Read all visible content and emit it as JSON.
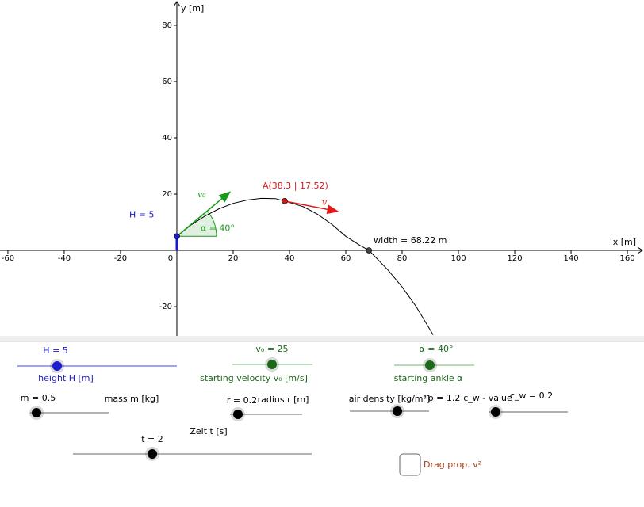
{
  "graphics": {
    "x_axis_label": "x [m]",
    "y_axis_label": "y [m]",
    "xlim": [
      -62.8,
      165.9
    ],
    "ylim": [
      -30.4,
      89.0
    ],
    "xticks": [
      -60,
      -40,
      -20,
      0,
      20,
      40,
      60,
      80,
      100,
      120,
      140,
      160
    ],
    "yticks": [
      -20,
      20,
      40,
      60,
      80
    ],
    "trajectory": {
      "x": [
        0,
        5,
        10,
        15,
        20,
        25,
        30,
        35,
        38.3,
        45,
        50,
        55,
        60,
        65,
        68.22,
        75,
        80,
        85,
        91
      ],
      "y": [
        5,
        9.0,
        12.2,
        14.8,
        16.7,
        17.9,
        18.5,
        18.4,
        17.52,
        15.5,
        12.8,
        9.3,
        5.0,
        1.8,
        0,
        -7,
        -13,
        -20,
        -30
      ]
    },
    "points": [
      {
        "label": "H = 5",
        "x": 0,
        "y": 5,
        "color": "#1a1ad0"
      },
      {
        "label": "A(38.3 | 17.52)",
        "x": 38.3,
        "y": 17.52,
        "color": "#d01a1a"
      },
      {
        "label": "width = 68.22 m",
        "x": 68.22,
        "y": 0,
        "color": "#444444"
      }
    ],
    "angle_label": "α = 40°",
    "vector_labels": [
      "v₀",
      "v"
    ]
  },
  "sliders": [
    {
      "label": "H = 5",
      "caption": "height H [m]"
    },
    {
      "label": "v₀ = 25",
      "caption": "starting velocity v₀ [m/s]"
    },
    {
      "label": "α = 40°",
      "caption": "starting ankle α"
    },
    {
      "label": "m = 0.5",
      "caption": "mass m [kg]"
    },
    {
      "label": "r = 0.2",
      "caption": "radius r [m]"
    },
    {
      "label": "ρ = 1.2",
      "caption": "air density [kg/m³]"
    },
    {
      "label": "c_w = 0.2",
      "caption": "c_w - value"
    },
    {
      "label": "t = 2",
      "caption": "Zeit t [s]"
    }
  ],
  "drag_checkbox": "Drag prop. v²"
}
